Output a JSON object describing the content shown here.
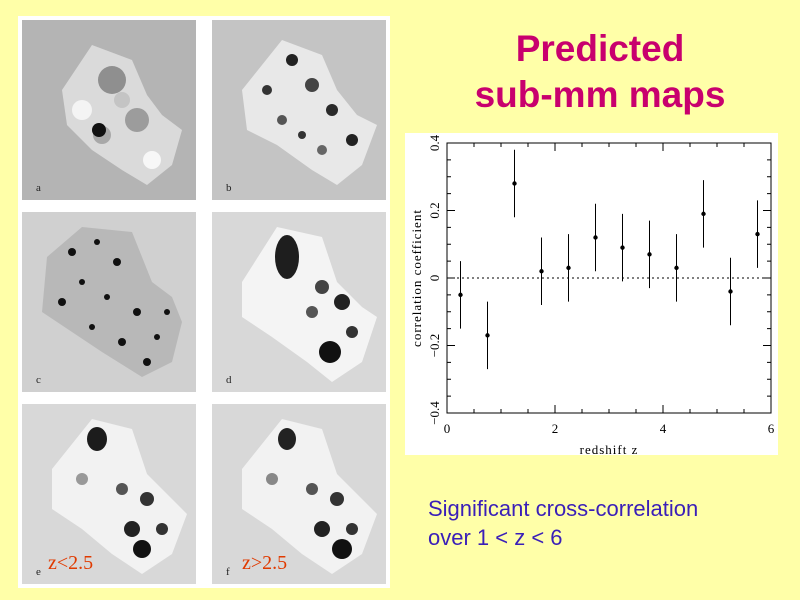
{
  "title": {
    "line1": "Predicted",
    "line2": "sub-mm maps"
  },
  "caption": {
    "line1": "Significant cross-correlation",
    "line2": "over 1 < z < 6"
  },
  "panels": [
    {
      "letter": "a",
      "label": ""
    },
    {
      "letter": "b",
      "label": ""
    },
    {
      "letter": "c",
      "label": ""
    },
    {
      "letter": "d",
      "label": ""
    },
    {
      "letter": "e",
      "label": "z<2.5"
    },
    {
      "letter": "f",
      "label": "z>2.5"
    }
  ],
  "chart_data": {
    "type": "scatter",
    "title": "",
    "xlabel": "redshift z",
    "ylabel": "correlation coefficient",
    "xlim": [
      0,
      6
    ],
    "ylim": [
      -0.4,
      0.4
    ],
    "x_ticks": [
      "0",
      "2",
      "4",
      "6"
    ],
    "y_ticks": [
      "−0.4",
      "−0.2",
      "0",
      "0.2",
      "0.4"
    ],
    "zero_line": "dotted",
    "series": [
      {
        "name": "",
        "x": [
          0.25,
          0.75,
          1.25,
          1.75,
          2.25,
          2.75,
          3.25,
          3.75,
          4.25,
          4.75,
          5.25,
          5.75
        ],
        "y": [
          -0.05,
          -0.17,
          0.28,
          0.02,
          0.03,
          0.12,
          0.09,
          0.07,
          0.03,
          0.19,
          -0.04,
          0.13
        ],
        "err": [
          0.1,
          0.1,
          0.1,
          0.1,
          0.1,
          0.1,
          0.1,
          0.1,
          0.1,
          0.1,
          0.1,
          0.1
        ]
      }
    ]
  }
}
